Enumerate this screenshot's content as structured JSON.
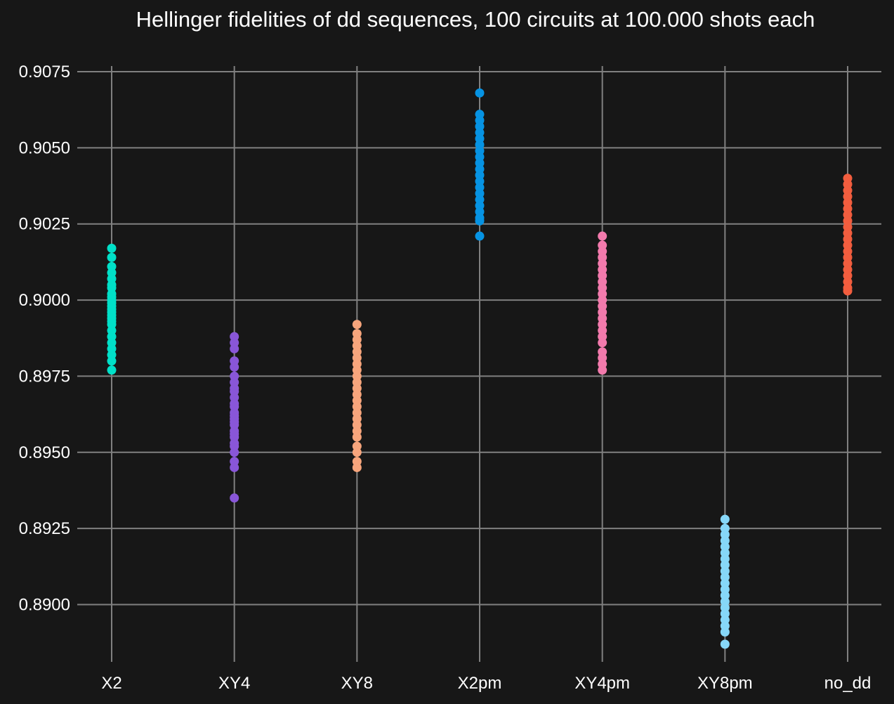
{
  "chart_data": {
    "type": "scatter",
    "title": "Hellinger fidelities of dd sequences, 100 circuits at 100.000 shots each",
    "xlabel": "",
    "ylabel": "",
    "categories": [
      "X2",
      "XY4",
      "XY8",
      "X2pm",
      "XY4pm",
      "XY8pm",
      "no_dd"
    ],
    "y_ticks": [
      "0.8900",
      "0.8925",
      "0.8950",
      "0.8975",
      "0.9000",
      "0.9025",
      "0.9050",
      "0.9075"
    ],
    "ylim": [
      0.8882,
      0.9081
    ],
    "grid": true,
    "legend": "none",
    "background": "#171717",
    "series": [
      {
        "category": "X2",
        "color": "#00e0c8",
        "values": [
          0.9017,
          0.9014,
          0.9011,
          0.9009,
          0.9007,
          0.9005,
          0.9004,
          0.9002,
          0.9001,
          0.9,
          0.8999,
          0.8998,
          0.8997,
          0.8996,
          0.8995,
          0.8994,
          0.8993,
          0.8992,
          0.899,
          0.8988,
          0.8986,
          0.8984,
          0.8982,
          0.898,
          0.8977
        ]
      },
      {
        "category": "XY4",
        "color": "#8956d8",
        "values": [
          0.8988,
          0.8986,
          0.8984,
          0.898,
          0.8978,
          0.8975,
          0.8973,
          0.8971,
          0.897,
          0.8968,
          0.8966,
          0.8965,
          0.8963,
          0.8962,
          0.8961,
          0.896,
          0.8959,
          0.8957,
          0.8956,
          0.8955,
          0.8953,
          0.8952,
          0.895,
          0.8947,
          0.8945,
          0.8935
        ]
      },
      {
        "category": "XY8",
        "color": "#f7a57c",
        "values": [
          0.8992,
          0.8989,
          0.8987,
          0.8985,
          0.8983,
          0.8981,
          0.8979,
          0.8977,
          0.8975,
          0.8973,
          0.8971,
          0.8969,
          0.8967,
          0.8965,
          0.8963,
          0.8961,
          0.8959,
          0.8957,
          0.8955,
          0.8952,
          0.895,
          0.8947,
          0.8945
        ]
      },
      {
        "category": "X2pm",
        "color": "#0693e3",
        "values": [
          0.9068,
          0.9061,
          0.9059,
          0.9057,
          0.9055,
          0.9053,
          0.9051,
          0.9049,
          0.9047,
          0.9045,
          0.9043,
          0.9041,
          0.9039,
          0.9037,
          0.9035,
          0.9033,
          0.9031,
          0.9029,
          0.9027,
          0.9026,
          0.9021
        ]
      },
      {
        "category": "XY4pm",
        "color": "#f27aac",
        "values": [
          0.9021,
          0.9018,
          0.9016,
          0.9014,
          0.9012,
          0.901,
          0.9008,
          0.9006,
          0.9004,
          0.9002,
          0.9,
          0.8998,
          0.8996,
          0.8994,
          0.8992,
          0.899,
          0.8988,
          0.8986,
          0.8983,
          0.8981,
          0.8979,
          0.8977
        ]
      },
      {
        "category": "XY8pm",
        "color": "#86d7f8",
        "values": [
          0.8928,
          0.8925,
          0.8923,
          0.8921,
          0.8919,
          0.8917,
          0.8915,
          0.8913,
          0.8911,
          0.8909,
          0.8907,
          0.8905,
          0.8903,
          0.8901,
          0.8899,
          0.8897,
          0.8895,
          0.8893,
          0.8891,
          0.8887
        ]
      },
      {
        "category": "no_dd",
        "color": "#f25d3e",
        "values": [
          0.904,
          0.9038,
          0.9036,
          0.9034,
          0.9032,
          0.903,
          0.9028,
          0.9026,
          0.9024,
          0.9022,
          0.902,
          0.9018,
          0.9016,
          0.9014,
          0.9012,
          0.901,
          0.9008,
          0.9006,
          0.9004,
          0.9003
        ]
      }
    ]
  }
}
